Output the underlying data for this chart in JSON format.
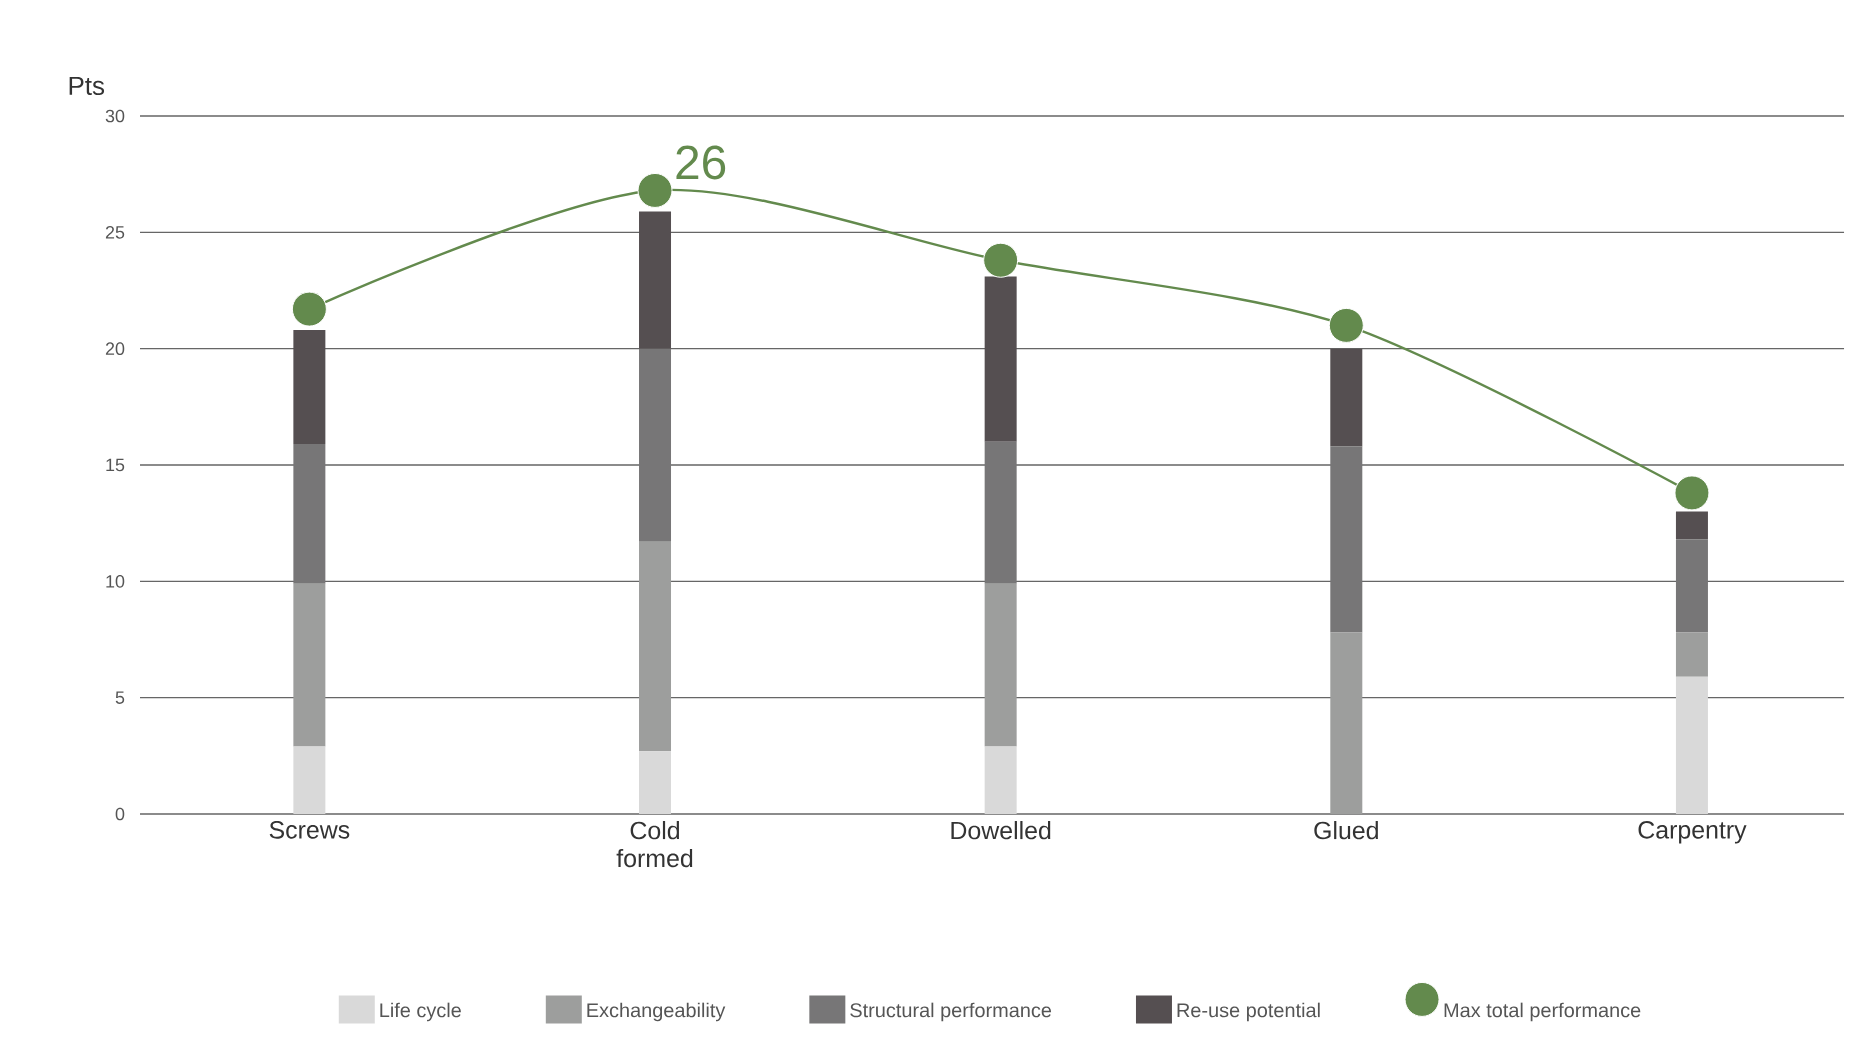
{
  "chart_data": {
    "type": "bar",
    "stacked": true,
    "ylabel": "Pts",
    "categories": [
      "Screws",
      "Cold formed",
      "Dowelled",
      "Glued",
      "Carpentry"
    ],
    "series": [
      {
        "name": "Life cycle",
        "color": "#d9d9d9",
        "values": [
          2.9,
          2.7,
          2.9,
          0,
          5.9
        ]
      },
      {
        "name": "Exchangeability",
        "color": "#9d9e9d",
        "values": [
          7,
          9,
          7,
          7.8,
          1.9
        ]
      },
      {
        "name": "Structural performance",
        "color": "#777677",
        "values": [
          6,
          8.3,
          6.1,
          8,
          4
        ]
      },
      {
        "name": "Re-use potential",
        "color": "#554f51",
        "values": [
          4.9,
          5.9,
          7.1,
          4.2,
          1.2
        ]
      },
      {
        "name": "Max total performance",
        "type": "line",
        "marker": "circle",
        "color": "#638a4d",
        "values": [
          21.7,
          26.8,
          23.8,
          21,
          13.8
        ]
      }
    ],
    "annotations": [
      {
        "text": "26",
        "x": "Cold formed",
        "y": 26.8
      }
    ],
    "ylim": [
      0,
      30
    ],
    "yticks": [
      0,
      5,
      10,
      15,
      20,
      25,
      30
    ],
    "grid": "y",
    "legend": "bottom"
  }
}
